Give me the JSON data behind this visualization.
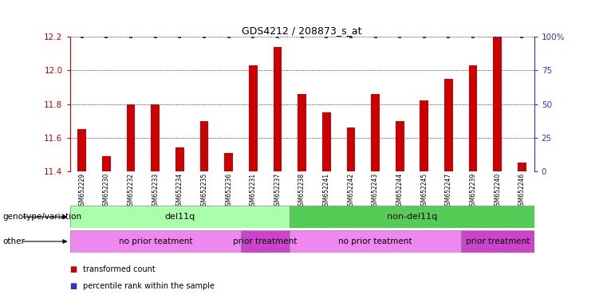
{
  "title": "GDS4212 / 208873_s_at",
  "samples": [
    "GSM652229",
    "GSM652230",
    "GSM652232",
    "GSM652233",
    "GSM652234",
    "GSM652235",
    "GSM652236",
    "GSM652231",
    "GSM652237",
    "GSM652238",
    "GSM652241",
    "GSM652242",
    "GSM652243",
    "GSM652244",
    "GSM652245",
    "GSM652247",
    "GSM652239",
    "GSM652240",
    "GSM652246"
  ],
  "bar_values": [
    11.65,
    11.49,
    11.8,
    11.8,
    11.54,
    11.7,
    11.51,
    12.03,
    12.14,
    11.86,
    11.75,
    11.66,
    11.86,
    11.7,
    11.82,
    11.95,
    12.03,
    12.2,
    11.45
  ],
  "percentile_values": [
    100,
    100,
    100,
    100,
    100,
    100,
    100,
    100,
    100,
    100,
    100,
    100,
    100,
    100,
    100,
    100,
    100,
    100,
    100
  ],
  "ylim_left": [
    11.4,
    12.2
  ],
  "ylim_right": [
    0,
    100
  ],
  "yticks_left": [
    11.4,
    11.6,
    11.8,
    12.0,
    12.2
  ],
  "yticks_right": [
    0,
    25,
    50,
    75,
    100
  ],
  "bar_color": "#cc0000",
  "percentile_color": "#3333cc",
  "background_color": "#ffffff",
  "genotype_groups": [
    {
      "text": "del11q",
      "start": 0,
      "end": 9,
      "color": "#aaffaa"
    },
    {
      "text": "non-del11q",
      "start": 9,
      "end": 19,
      "color": "#55cc55"
    }
  ],
  "other_groups": [
    {
      "text": "no prior teatment",
      "start": 0,
      "end": 7,
      "color": "#ee88ee"
    },
    {
      "text": "prior treatment",
      "start": 7,
      "end": 9,
      "color": "#cc44cc"
    },
    {
      "text": "no prior teatment",
      "start": 9,
      "end": 16,
      "color": "#ee88ee"
    },
    {
      "text": "prior treatment",
      "start": 16,
      "end": 19,
      "color": "#cc44cc"
    }
  ],
  "legend_items": [
    {
      "label": "transformed count",
      "color": "#cc0000"
    },
    {
      "label": "percentile rank within the sample",
      "color": "#3333cc"
    }
  ],
  "genotype_label": "genotype/variation",
  "other_label": "other"
}
